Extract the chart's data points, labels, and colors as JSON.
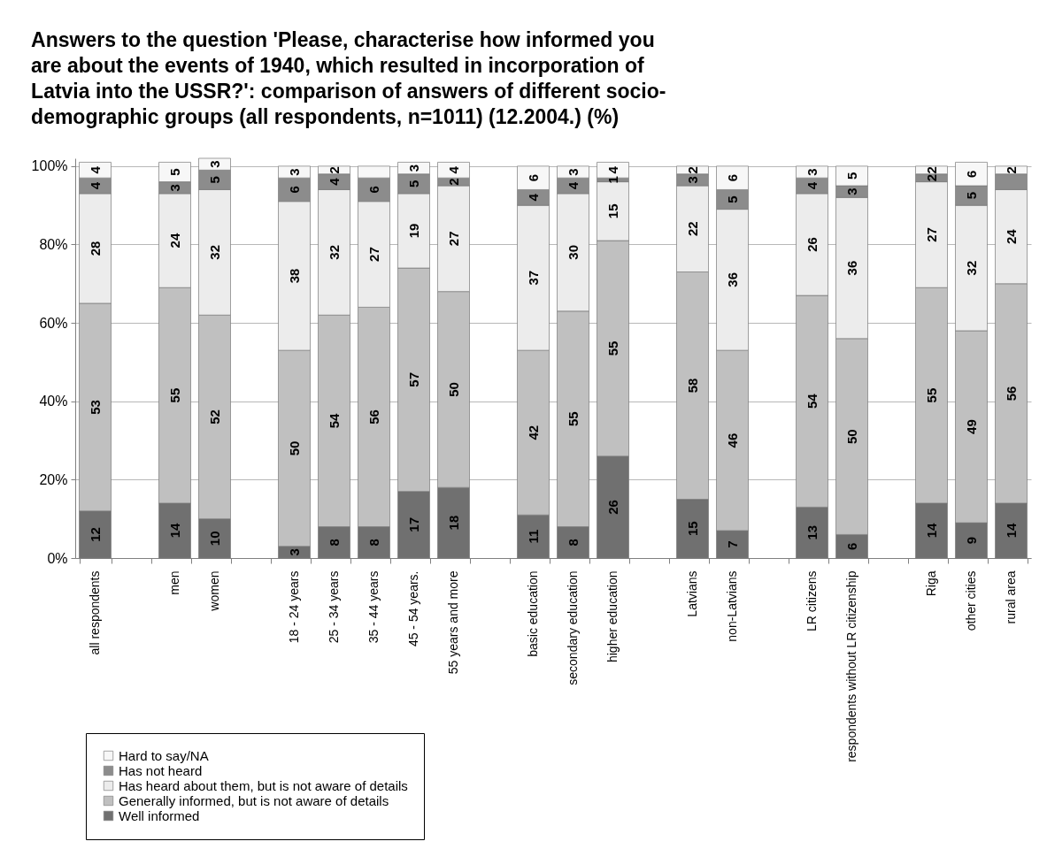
{
  "chart_data": {
    "type": "bar",
    "title": "Answers to the question 'Please, characterise how informed you are about the events of 1940, which resulted in incorporation of Latvia into the USSR?': comparison of answers of different socio-demographic groups (all respondents, n=1011) (12.2004.) (%)",
    "categories": [
      "all respondents",
      null,
      "men",
      "women",
      null,
      "18 - 24 years",
      "25 - 34 years",
      "35 - 44 years",
      "45 - 54 years.",
      "55 years and more",
      null,
      "basic education",
      "secondary education",
      "higher education",
      null,
      "Latvians",
      "non-Latvians",
      null,
      "LR citizens",
      "respondents without LR citizenship",
      null,
      "Riga",
      "other cities",
      "rural area"
    ],
    "stacked": true,
    "ylim": [
      0,
      102
    ],
    "yticks": [
      {
        "value": 0,
        "label": "0%"
      },
      {
        "value": 20,
        "label": "20%"
      },
      {
        "value": 40,
        "label": "40%"
      },
      {
        "value": 60,
        "label": "60%"
      },
      {
        "value": 80,
        "label": "80%"
      },
      {
        "value": 100,
        "label": "100%"
      }
    ],
    "grid": "y",
    "legend": "bottom left",
    "series": [
      {
        "name": "Well informed",
        "color": "#707070",
        "values": [
          12,
          null,
          14,
          10,
          null,
          3,
          8,
          8,
          17,
          18,
          null,
          11,
          8,
          26,
          null,
          15,
          7,
          null,
          13,
          6,
          null,
          14,
          9,
          14
        ],
        "value_labels": [
          "12",
          null,
          "14",
          "10",
          null,
          "3",
          "8",
          "8",
          "17",
          "18",
          null,
          "11",
          "8",
          "26",
          null,
          "15",
          "7",
          null,
          "13",
          "6",
          null,
          "14",
          "9",
          "14"
        ]
      },
      {
        "name": "Generally informed, but is not aware of details",
        "color": "#c0c0c0",
        "values": [
          53,
          null,
          55,
          52,
          null,
          50,
          54,
          56,
          57,
          50,
          null,
          42,
          55,
          55,
          null,
          58,
          46,
          null,
          54,
          50,
          null,
          55,
          49,
          56
        ],
        "value_labels": [
          "53",
          null,
          "55",
          "52",
          null,
          "50",
          "54",
          "56",
          "57",
          "50",
          null,
          "42",
          "55",
          "55",
          null,
          "58",
          "46",
          null,
          "54",
          "50",
          null,
          "55",
          "49",
          "56"
        ]
      },
      {
        "name": "Has heard about them, but is not aware of details",
        "color": "#ececec",
        "values": [
          28,
          null,
          24,
          32,
          null,
          38,
          32,
          27,
          19,
          27,
          null,
          37,
          30,
          15,
          null,
          22,
          36,
          null,
          26,
          36,
          null,
          27,
          32,
          24
        ],
        "value_labels": [
          "28",
          null,
          "24",
          "32",
          null,
          "38",
          "32",
          "27",
          "19",
          "27",
          null,
          "37",
          "30",
          "15",
          null,
          "22",
          "36",
          null,
          "26",
          "36",
          null,
          "27",
          "32",
          "24"
        ]
      },
      {
        "name": "Has not heard",
        "color": "#8c8c8c",
        "values": [
          4,
          null,
          3,
          5,
          null,
          6,
          4,
          6,
          5,
          2,
          null,
          4,
          4,
          1,
          null,
          3,
          5,
          null,
          4,
          3,
          null,
          2,
          5,
          4
        ],
        "value_labels": [
          "4",
          null,
          "3",
          "5",
          null,
          "6",
          "4",
          "6",
          "5",
          "2",
          null,
          "4",
          "4",
          "1",
          null,
          "3",
          "5",
          null,
          "4",
          "3",
          null,
          "2",
          "5",
          null
        ]
      },
      {
        "name": "Hard to say/NA",
        "color": "#f7f7f7",
        "values": [
          4,
          null,
          5,
          3,
          null,
          3,
          2,
          3,
          3,
          4,
          null,
          6,
          3,
          4,
          null,
          2,
          6,
          null,
          3,
          5,
          null,
          2,
          6,
          2
        ],
        "value_labels": [
          "4",
          null,
          "5",
          "3",
          null,
          "3",
          "2",
          null,
          "3",
          "4",
          null,
          "6",
          "3",
          "4",
          null,
          "2",
          "6",
          null,
          "3",
          "5",
          null,
          "2",
          "6",
          "2"
        ]
      }
    ]
  }
}
